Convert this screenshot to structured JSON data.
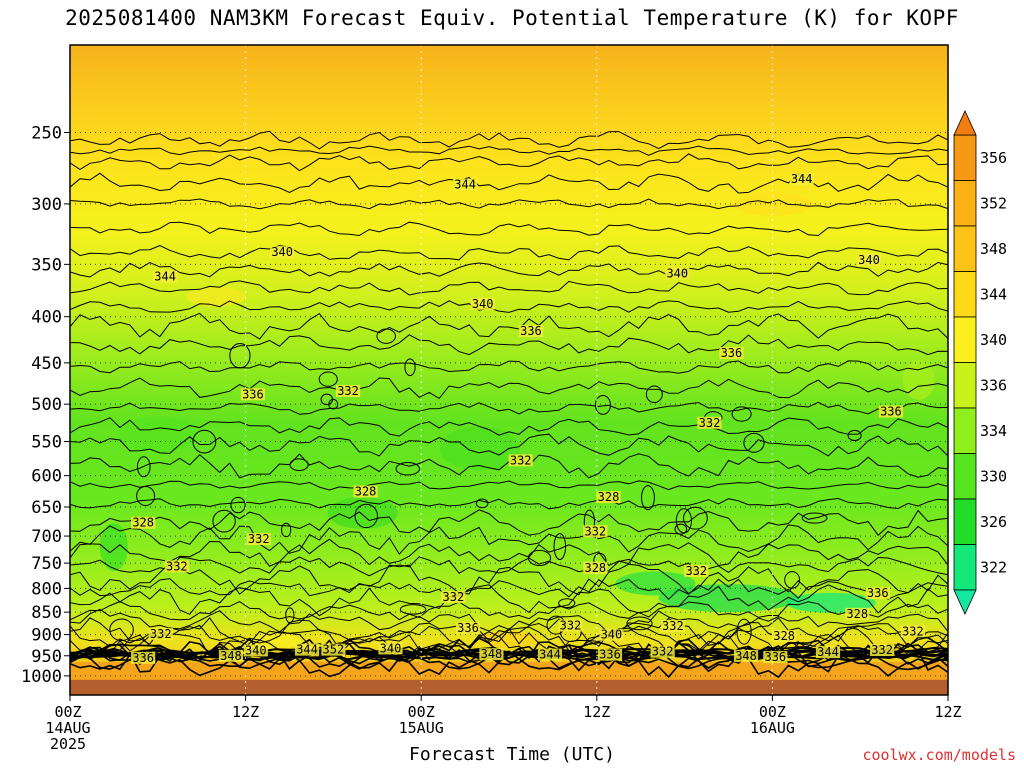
{
  "chart": {
    "title": "2025081400 NAM3KM Forecast Equiv. Potential Temperature (K) for KOPF",
    "xlabel": "Forecast Time (UTC)",
    "watermark": "coolwx.com/models"
  },
  "chart_data": {
    "type": "heatmap",
    "title": "2025081400 NAM3KM Forecast Equiv. Potential Temperature (K) for KOPF",
    "xlabel": "Forecast Time (UTC)",
    "ylabel": "",
    "units": "K",
    "x_range_hours": [
      0,
      60
    ],
    "y_scale": "log-pressure (hPa)",
    "y_range": [
      1050,
      200
    ],
    "y_ticks": [
      250,
      300,
      350,
      400,
      450,
      500,
      550,
      600,
      650,
      700,
      750,
      800,
      850,
      900,
      950,
      1000
    ],
    "x_ticks": [
      {
        "hour": 0,
        "label": [
          "00Z",
          "14AUG",
          "2025"
        ]
      },
      {
        "hour": 12,
        "label": [
          "12Z"
        ]
      },
      {
        "hour": 24,
        "label": [
          "00Z",
          "15AUG"
        ]
      },
      {
        "hour": 36,
        "label": [
          "12Z"
        ]
      },
      {
        "hour": 48,
        "label": [
          "00Z",
          "16AUG"
        ]
      },
      {
        "hour": 60,
        "label": [
          "12Z"
        ]
      }
    ],
    "colorbar": {
      "labels": [
        356,
        352,
        348,
        344,
        340,
        336,
        334,
        330,
        326,
        322
      ],
      "colors": [
        "#f59a12",
        "#fbb014",
        "#fdc417",
        "#fdda14",
        "#fbf01e",
        "#c8f21a",
        "#90ee1c",
        "#55e41e",
        "#22dc28",
        "#14e87a"
      ]
    },
    "contour_labels": [
      {
        "h": 27.0,
        "p": 287,
        "v": "344"
      },
      {
        "h": 50.0,
        "p": 283,
        "v": "344"
      },
      {
        "h": 6.5,
        "p": 363,
        "v": "344"
      },
      {
        "h": 14.5,
        "p": 341,
        "v": "340"
      },
      {
        "h": 28.2,
        "p": 389,
        "v": "340"
      },
      {
        "h": 41.5,
        "p": 360,
        "v": "340"
      },
      {
        "h": 54.6,
        "p": 348,
        "v": "340"
      },
      {
        "h": 31.5,
        "p": 417,
        "v": "336"
      },
      {
        "h": 45.2,
        "p": 441,
        "v": "336"
      },
      {
        "h": 12.5,
        "p": 490,
        "v": "336"
      },
      {
        "h": 56.1,
        "p": 512,
        "v": "336"
      },
      {
        "h": 19.0,
        "p": 486,
        "v": "332"
      },
      {
        "h": 43.7,
        "p": 527,
        "v": "332"
      },
      {
        "h": 30.8,
        "p": 580,
        "v": "332"
      },
      {
        "h": 20.2,
        "p": 628,
        "v": "328"
      },
      {
        "h": 36.8,
        "p": 637,
        "v": "328"
      },
      {
        "h": 5.0,
        "p": 680,
        "v": "328"
      },
      {
        "h": 12.9,
        "p": 709,
        "v": "332"
      },
      {
        "h": 35.9,
        "p": 695,
        "v": "332"
      },
      {
        "h": 7.3,
        "p": 760,
        "v": "332"
      },
      {
        "h": 35.9,
        "p": 763,
        "v": "328"
      },
      {
        "h": 42.8,
        "p": 769,
        "v": "332"
      },
      {
        "h": 26.2,
        "p": 822,
        "v": "332"
      },
      {
        "h": 55.2,
        "p": 814,
        "v": "336"
      },
      {
        "h": 53.8,
        "p": 858,
        "v": "328"
      },
      {
        "h": 6.2,
        "p": 903,
        "v": "332"
      },
      {
        "h": 27.2,
        "p": 890,
        "v": "336"
      },
      {
        "h": 34.2,
        "p": 884,
        "v": "332"
      },
      {
        "h": 37.0,
        "p": 905,
        "v": "340"
      },
      {
        "h": 41.2,
        "p": 885,
        "v": "332"
      },
      {
        "h": 48.8,
        "p": 908,
        "v": "328"
      },
      {
        "h": 57.6,
        "p": 897,
        "v": "332"
      },
      {
        "h": 5.0,
        "p": 960,
        "v": "336"
      },
      {
        "h": 11.0,
        "p": 955,
        "v": "348"
      },
      {
        "h": 12.7,
        "p": 942,
        "v": "340"
      },
      {
        "h": 16.2,
        "p": 940,
        "v": "344"
      },
      {
        "h": 18.0,
        "p": 940,
        "v": "352"
      },
      {
        "h": 21.9,
        "p": 937,
        "v": "340"
      },
      {
        "h": 28.8,
        "p": 951,
        "v": "348"
      },
      {
        "h": 32.8,
        "p": 952,
        "v": "344"
      },
      {
        "h": 36.9,
        "p": 952,
        "v": "336"
      },
      {
        "h": 40.5,
        "p": 945,
        "v": "332"
      },
      {
        "h": 46.2,
        "p": 955,
        "v": "348"
      },
      {
        "h": 48.2,
        "p": 958,
        "v": "336"
      },
      {
        "h": 51.8,
        "p": 946,
        "v": "344"
      },
      {
        "h": 55.5,
        "p": 941,
        "v": "332"
      }
    ]
  }
}
